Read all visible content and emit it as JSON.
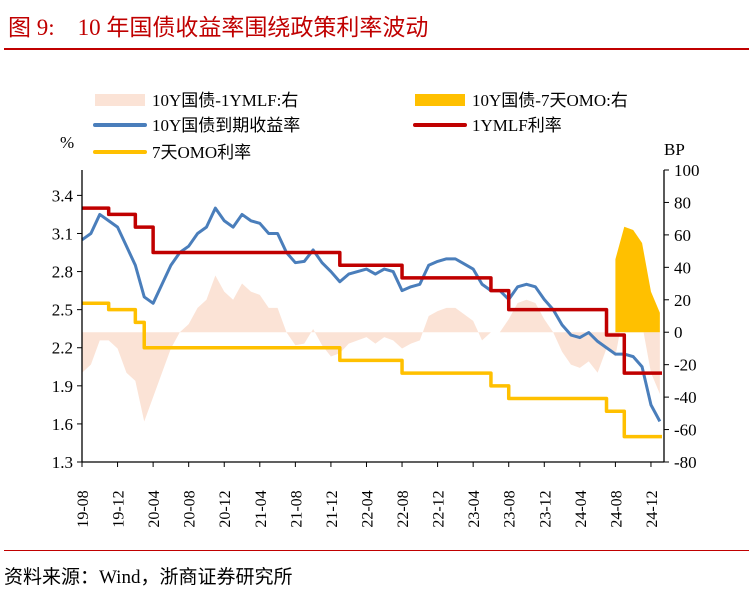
{
  "title": "图 9:    10 年国债收益率围绕政策利率波动",
  "source": "资料来源：Wind，浙商证券研究所",
  "chart_data": {
    "type": "line",
    "left_axis": {
      "unit_label": "%",
      "ylim": [
        1.3,
        3.6
      ],
      "ticks": [
        "3.4",
        "3.1",
        "2.8",
        "2.5",
        "2.2",
        "1.9",
        "1.6",
        "1.3"
      ]
    },
    "right_axis": {
      "unit_label": "BP",
      "ylim": [
        -80,
        100
      ],
      "ticks": [
        "100",
        "80",
        "60",
        "40",
        "20",
        "0",
        "-20",
        "-40",
        "-60",
        "-80"
      ]
    },
    "x_tick_labels": [
      "19-08",
      "19-12",
      "20-04",
      "20-08",
      "20-12",
      "21-04",
      "21-08",
      "21-12",
      "22-04",
      "22-08",
      "22-12",
      "23-04",
      "23-08",
      "23-12",
      "24-04",
      "24-08",
      "24-12"
    ],
    "x": [
      "19-08",
      "19-09",
      "19-10",
      "19-11",
      "19-12",
      "20-01",
      "20-02",
      "20-03",
      "20-04",
      "20-05",
      "20-06",
      "20-07",
      "20-08",
      "20-09",
      "20-10",
      "20-11",
      "20-12",
      "21-01",
      "21-02",
      "21-03",
      "21-04",
      "21-05",
      "21-06",
      "21-07",
      "21-08",
      "21-09",
      "21-10",
      "21-11",
      "21-12",
      "22-01",
      "22-02",
      "22-03",
      "22-04",
      "22-05",
      "22-06",
      "22-07",
      "22-08",
      "22-09",
      "22-10",
      "22-11",
      "22-12",
      "23-01",
      "23-02",
      "23-03",
      "23-04",
      "23-05",
      "23-06",
      "23-07",
      "23-08",
      "23-09",
      "23-10",
      "23-11",
      "23-12",
      "24-01",
      "24-02",
      "24-03",
      "24-04",
      "24-05",
      "24-06",
      "24-07",
      "24-08",
      "24-09",
      "24-10",
      "24-11",
      "24-12",
      "25-01"
    ],
    "legend_placement": "top",
    "series": [
      {
        "name": "10Y国债-1YMLF:右",
        "kind": "area",
        "axis": "right",
        "color": "#FBE3D6",
        "values": [
          -25,
          -20,
          -5,
          -5,
          -10,
          -25,
          -30,
          -55,
          -40,
          -25,
          -10,
          0,
          5,
          15,
          20,
          35,
          25,
          20,
          30,
          25,
          23,
          15,
          15,
          0,
          -8,
          -7,
          2,
          -8,
          -15,
          -13,
          -7,
          -5,
          -3,
          -7,
          -3,
          -5,
          -10,
          -7,
          -5,
          10,
          13,
          15,
          15,
          11,
          7,
          -5,
          0,
          0,
          8,
          18,
          20,
          18,
          8,
          0,
          -12,
          -20,
          -22,
          -18,
          -25,
          -10,
          -15,
          15,
          13,
          5,
          -25,
          -38
        ]
      },
      {
        "name": "10Y国债-7天OMO:右",
        "kind": "area",
        "axis": "right",
        "color": "#FFC000",
        "values": [
          null,
          null,
          null,
          null,
          null,
          null,
          null,
          null,
          null,
          null,
          null,
          null,
          null,
          null,
          null,
          null,
          null,
          null,
          null,
          null,
          null,
          null,
          null,
          null,
          null,
          null,
          null,
          null,
          null,
          null,
          null,
          null,
          null,
          null,
          null,
          null,
          null,
          null,
          null,
          null,
          null,
          null,
          null,
          null,
          null,
          null,
          null,
          null,
          null,
          null,
          null,
          null,
          null,
          null,
          null,
          null,
          null,
          null,
          null,
          null,
          45,
          65,
          63,
          55,
          25,
          12
        ]
      },
      {
        "name": "10Y国债到期收益率",
        "kind": "line",
        "axis": "left",
        "color": "#4A7EBB",
        "values": [
          3.05,
          3.1,
          3.25,
          3.2,
          3.15,
          3.0,
          2.85,
          2.6,
          2.55,
          2.7,
          2.85,
          2.95,
          3.0,
          3.1,
          3.15,
          3.3,
          3.2,
          3.15,
          3.25,
          3.2,
          3.18,
          3.1,
          3.1,
          2.95,
          2.87,
          2.88,
          2.97,
          2.87,
          2.8,
          2.72,
          2.78,
          2.8,
          2.82,
          2.78,
          2.82,
          2.8,
          2.65,
          2.68,
          2.7,
          2.85,
          2.88,
          2.9,
          2.9,
          2.86,
          2.82,
          2.7,
          2.65,
          2.65,
          2.58,
          2.68,
          2.7,
          2.68,
          2.58,
          2.5,
          2.38,
          2.3,
          2.28,
          2.32,
          2.25,
          2.2,
          2.15,
          2.15,
          2.13,
          2.05,
          1.75,
          1.62
        ]
      },
      {
        "name": "1YMLF利率",
        "kind": "step",
        "axis": "left",
        "color": "#C00000",
        "values": [
          3.3,
          3.3,
          3.3,
          3.25,
          3.25,
          3.25,
          3.15,
          3.15,
          2.95,
          2.95,
          2.95,
          2.95,
          2.95,
          2.95,
          2.95,
          2.95,
          2.95,
          2.95,
          2.95,
          2.95,
          2.95,
          2.95,
          2.95,
          2.95,
          2.95,
          2.95,
          2.95,
          2.95,
          2.95,
          2.85,
          2.85,
          2.85,
          2.85,
          2.85,
          2.85,
          2.85,
          2.75,
          2.75,
          2.75,
          2.75,
          2.75,
          2.75,
          2.75,
          2.75,
          2.75,
          2.75,
          2.65,
          2.65,
          2.5,
          2.5,
          2.5,
          2.5,
          2.5,
          2.5,
          2.5,
          2.5,
          2.5,
          2.5,
          2.5,
          2.3,
          2.3,
          2.0,
          2.0,
          2.0,
          2.0,
          2.0
        ]
      },
      {
        "name": "7天OMO利率",
        "kind": "step",
        "axis": "left",
        "color": "#FFC000",
        "values": [
          2.55,
          2.55,
          2.55,
          2.5,
          2.5,
          2.5,
          2.4,
          2.2,
          2.2,
          2.2,
          2.2,
          2.2,
          2.2,
          2.2,
          2.2,
          2.2,
          2.2,
          2.2,
          2.2,
          2.2,
          2.2,
          2.2,
          2.2,
          2.2,
          2.2,
          2.2,
          2.2,
          2.2,
          2.2,
          2.1,
          2.1,
          2.1,
          2.1,
          2.1,
          2.1,
          2.1,
          2.0,
          2.0,
          2.0,
          2.0,
          2.0,
          2.0,
          2.0,
          2.0,
          2.0,
          2.0,
          1.9,
          1.9,
          1.8,
          1.8,
          1.8,
          1.8,
          1.8,
          1.8,
          1.8,
          1.8,
          1.8,
          1.8,
          1.8,
          1.7,
          1.7,
          1.5,
          1.5,
          1.5,
          1.5,
          1.5
        ]
      }
    ]
  }
}
